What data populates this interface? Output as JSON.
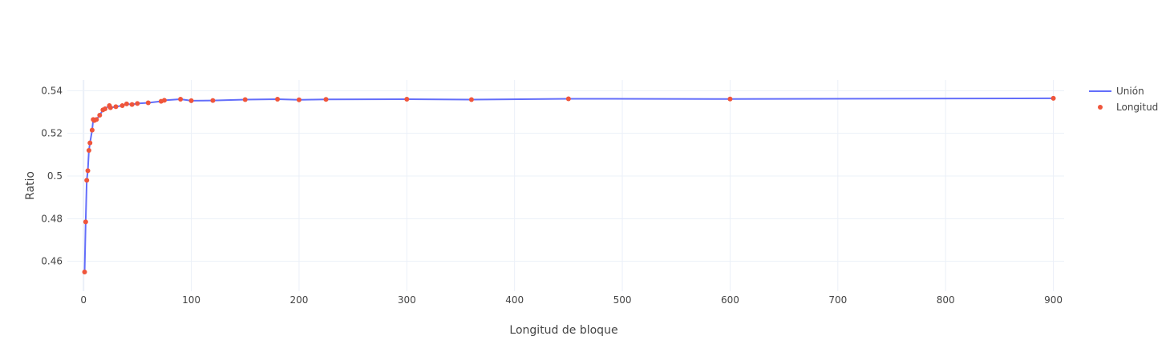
{
  "chart_data": {
    "type": "line",
    "title": "",
    "xlabel": "Longitud de bloque",
    "ylabel": "Ratio",
    "xlim": [
      -15,
      910
    ],
    "ylim": [
      0.446,
      0.545
    ],
    "x_ticks": [
      0,
      100,
      200,
      300,
      400,
      500,
      600,
      700,
      800,
      900
    ],
    "y_ticks": [
      0.46,
      0.48,
      0.5,
      0.52,
      0.54
    ],
    "x_tick_labels": [
      "0",
      "100",
      "200",
      "300",
      "400",
      "500",
      "600",
      "700",
      "800",
      "900"
    ],
    "y_tick_labels": [
      "0.46",
      "0.48",
      "0.5",
      "0.52",
      "0.54"
    ],
    "grid": true,
    "legend_position": "top-right",
    "series": [
      {
        "name": "Unión",
        "mode": "line",
        "color": "#636efa",
        "x": [
          1,
          2,
          3,
          4,
          5,
          6,
          8,
          9,
          10,
          12,
          15,
          18,
          20,
          24,
          25,
          30,
          36,
          40,
          45,
          50,
          60,
          72,
          75,
          90,
          100,
          120,
          150,
          180,
          200,
          225,
          300,
          360,
          450,
          600,
          900
        ],
        "y": [
          0.455,
          0.4785,
          0.498,
          0.5025,
          0.512,
          0.5155,
          0.5215,
          0.5265,
          0.526,
          0.5265,
          0.5285,
          0.531,
          0.5315,
          0.533,
          0.532,
          0.5325,
          0.533,
          0.5338,
          0.5335,
          0.534,
          0.5343,
          0.535,
          0.5355,
          0.536,
          0.5353,
          0.5354,
          0.5358,
          0.536,
          0.5357,
          0.5359,
          0.536,
          0.5358,
          0.5362,
          0.5361,
          0.5364
        ]
      },
      {
        "name": "Longitud",
        "mode": "markers",
        "color": "#ef553b",
        "x": [
          1,
          2,
          3,
          4,
          5,
          6,
          8,
          9,
          10,
          12,
          15,
          18,
          20,
          24,
          25,
          30,
          36,
          40,
          45,
          50,
          60,
          72,
          75,
          90,
          100,
          120,
          150,
          180,
          200,
          225,
          300,
          360,
          450,
          600,
          900
        ],
        "y": [
          0.455,
          0.4785,
          0.498,
          0.5025,
          0.512,
          0.5155,
          0.5215,
          0.5265,
          0.526,
          0.5265,
          0.5285,
          0.531,
          0.5315,
          0.533,
          0.532,
          0.5325,
          0.533,
          0.5338,
          0.5335,
          0.534,
          0.5343,
          0.535,
          0.5355,
          0.536,
          0.5353,
          0.5354,
          0.5358,
          0.536,
          0.5357,
          0.5359,
          0.536,
          0.5358,
          0.5362,
          0.5361,
          0.5364
        ]
      }
    ]
  }
}
